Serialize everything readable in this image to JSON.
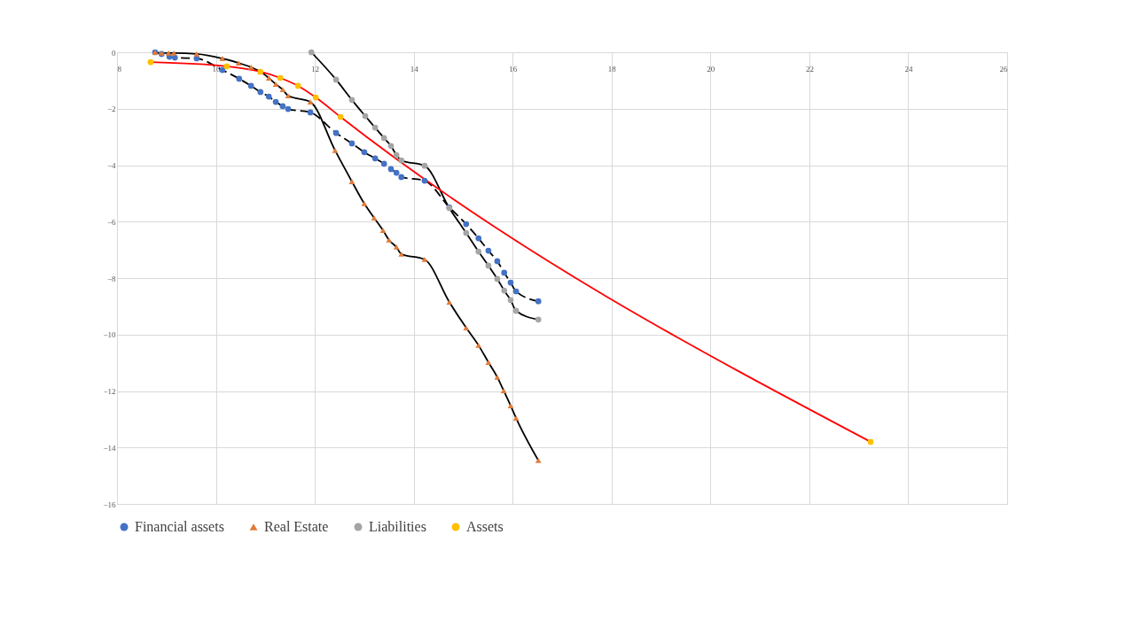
{
  "chart_data": {
    "type": "line",
    "xlim": [
      8,
      26
    ],
    "xticks": [
      8,
      10,
      12,
      14,
      16,
      18,
      20,
      22,
      24,
      26
    ],
    "ylim": [
      -16,
      0
    ],
    "yticks": [
      0,
      -2,
      -4,
      -6,
      -8,
      -10,
      -12,
      -14,
      -16
    ],
    "grid": true,
    "legend": "bottom",
    "series": [
      {
        "name": "Financial assets",
        "color": "#000000",
        "colors": [
          "#4472c4",
          "#4472c4",
          "#4472c4",
          "#4472c4",
          "#4472c4",
          "#4472c4",
          "#4472c4",
          "#4472c4",
          "#4472c4",
          "#4472c4",
          "#4472c4",
          "#4472c4",
          "#4472c4",
          "#4472c4",
          "#4472c4",
          "#4472c4",
          "#4472c4",
          "#4472c4",
          "#4472c4",
          "#4472c4",
          "#4472c4",
          "#4472c4",
          "#4472c4",
          "#4472c4",
          "#4472c4",
          "#4472c4",
          "#4472c4",
          "#4472c4",
          "#4472c4",
          "#4472c4",
          "#4472c4",
          "#4472c4"
        ],
        "line_style": "dashed",
        "marker": "circle",
        "x": [
          8.77,
          8.9,
          9.06,
          9.17,
          9.61,
          10.13,
          10.47,
          10.71,
          10.9,
          11.07,
          11.21,
          11.35,
          11.46,
          11.91,
          12.43,
          12.75,
          13.0,
          13.22,
          13.4,
          13.54,
          13.65,
          13.75,
          14.22,
          14.72,
          15.06,
          15.31,
          15.51,
          15.69,
          15.83,
          15.96,
          16.07,
          16.52
        ],
        "values": [
          0,
          -0.06,
          -0.16,
          -0.19,
          -0.22,
          -0.63,
          -0.94,
          -1.19,
          -1.41,
          -1.57,
          -1.76,
          -1.91,
          -2.01,
          -2.13,
          -2.86,
          -3.23,
          -3.54,
          -3.76,
          -3.95,
          -4.14,
          -4.27,
          -4.42,
          -4.55,
          -5.49,
          -6.09,
          -6.59,
          -7.03,
          -7.4,
          -7.81,
          -8.16,
          -8.47,
          -8.82
        ]
      },
      {
        "name": "Real Estate",
        "color": "#000000",
        "colors": [
          "#e07b39",
          "#e07b39",
          "#e07b39",
          "#e07b39",
          "#e07b39",
          "#e07b39",
          "#e07b39",
          "#e07b39",
          "#e07b39",
          "#e07b39",
          "#e07b39",
          "#e07b39",
          "#e07b39",
          "#e07b39",
          "#e07b39",
          "#e07b39",
          "#e07b39",
          "#e07b39",
          "#e07b39",
          "#e07b39",
          "#e07b39",
          "#e07b39",
          "#e07b39",
          "#e07b39",
          "#e07b39",
          "#e07b39",
          "#e07b39",
          "#e07b39",
          "#e07b39",
          "#e07b39",
          "#e07b39",
          "#e07b39"
        ],
        "line_style": "solid",
        "marker": "triangle",
        "x": [
          8.77,
          8.9,
          9.04,
          9.15,
          9.61,
          10.13,
          10.46,
          10.71,
          10.9,
          11.07,
          11.21,
          11.35,
          11.46,
          11.91,
          12.41,
          12.75,
          13.0,
          13.2,
          13.38,
          13.5,
          13.65,
          13.75,
          14.22,
          14.72,
          15.06,
          15.31,
          15.51,
          15.69,
          15.82,
          15.96,
          16.07,
          16.52
        ],
        "values": [
          0,
          -0.03,
          -0.03,
          -0.03,
          -0.06,
          -0.22,
          -0.38,
          -0.53,
          -0.69,
          -0.91,
          -1.13,
          -1.32,
          -1.54,
          -1.76,
          -3.48,
          -4.58,
          -5.36,
          -5.87,
          -6.31,
          -6.65,
          -6.9,
          -7.15,
          -7.34,
          -8.85,
          -9.76,
          -10.38,
          -10.98,
          -11.51,
          -11.99,
          -12.52,
          -12.96,
          -14.46
        ]
      },
      {
        "name": "Liabilities",
        "color": "#000000",
        "colors": [
          "#a5a5a5",
          "#a5a5a5",
          "#a5a5a5",
          "#a5a5a5",
          "#a5a5a5",
          "#a5a5a5",
          "#a5a5a5",
          "#a5a5a5",
          "#a5a5a5",
          "#a5a5a5",
          "#a5a5a5",
          "#a5a5a5",
          "#a5a5a5",
          "#a5a5a5",
          "#a5a5a5",
          "#a5a5a5",
          "#a5a5a5",
          "#a5a5a5",
          "#a5a5a5"
        ],
        "line_style": "solid",
        "marker": "circle",
        "x": [
          11.93,
          12.43,
          12.75,
          13.02,
          13.22,
          13.4,
          13.54,
          13.65,
          13.75,
          14.22,
          14.72,
          15.06,
          15.31,
          15.51,
          15.69,
          15.83,
          15.96,
          16.07,
          16.52
        ],
        "values": [
          0,
          -0.97,
          -1.69,
          -2.26,
          -2.67,
          -3.04,
          -3.32,
          -3.64,
          -3.83,
          -4.02,
          -5.52,
          -6.4,
          -7.06,
          -7.56,
          -8.03,
          -8.44,
          -8.78,
          -9.16,
          -9.47
        ]
      },
      {
        "name": "Assets",
        "color": "#ff0000",
        "colors": [
          "#ffc000",
          "#ffc000",
          "#ffc000",
          "#ffc000",
          "#ffc000",
          "#ffc000",
          "#ffc000",
          "#ffc000"
        ],
        "line_style": "solid",
        "marker": "circle",
        "x": [
          8.68,
          10.22,
          10.9,
          11.3,
          11.66,
          12.02,
          12.52,
          23.24
        ],
        "values": [
          -0.35,
          -0.5,
          -0.69,
          -0.91,
          -1.19,
          -1.6,
          -2.29,
          -13.8
        ]
      }
    ]
  }
}
